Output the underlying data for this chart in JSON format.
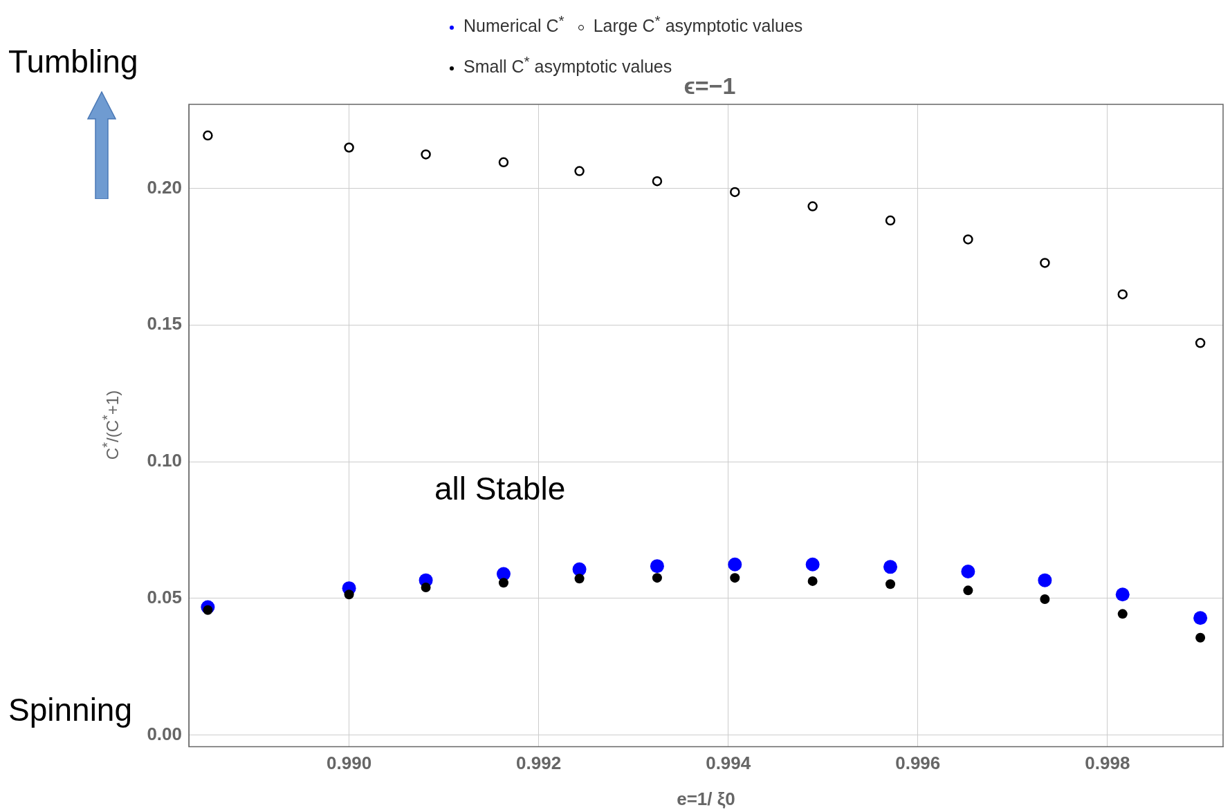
{
  "chart_data": {
    "type": "scatter",
    "title": "ϵ=−1",
    "xlabel": "e=1/ ξ0",
    "ylabel": "C$^{*}$/(C$^{*}$+1)",
    "x": [
      0.98851,
      0.99,
      0.99081,
      0.99163,
      0.99243,
      0.99325,
      0.99407,
      0.99489,
      0.99571,
      0.99653,
      0.99734,
      0.99816,
      0.99898
    ],
    "series": [
      {
        "name": "Numerical C$^{*}$",
        "color": "#0000ff",
        "marker": "circle",
        "values": [
          0.0468,
          0.0537,
          0.0566,
          0.0589,
          0.0606,
          0.0618,
          0.0624,
          0.0624,
          0.0615,
          0.0598,
          0.0566,
          0.0514,
          0.0428
        ]
      },
      {
        "name": "Large C$^{*}$ asymptotic values",
        "color": "#000000",
        "marker": "circle",
        "values": [
          0.2193,
          0.2149,
          0.2124,
          0.2095,
          0.2063,
          0.2026,
          0.1986,
          0.1934,
          0.1882,
          0.1813,
          0.1727,
          0.1612,
          0.1434
        ]
      },
      {
        "name": "Small C$^{*}$ asymptotic values",
        "color": "#000000",
        "marker": "circle",
        "values": [
          0.0457,
          0.0514,
          0.054,
          0.0557,
          0.0572,
          0.0575,
          0.0575,
          0.0563,
          0.0552,
          0.0529,
          0.0497,
          0.0443,
          0.0356
        ]
      }
    ],
    "xlim": [
      0.98831,
      0.99922
    ],
    "xticks": [
      {
        "value": 0.99,
        "label": "0.990"
      },
      0.992,
      0.994,
      0.996,
      0.998
    ],
    "ylim": [
      -0.0043,
      0.2307
    ],
    "yticks": [
      {
        "value": 0,
        "label": "0.00"
      },
      0.05,
      {
        "value": 0.1,
        "label": "0.10"
      },
      0.15,
      {
        "value": 0.2,
        "label": "0.20"
      }
    ],
    "grid": true,
    "legend": "top",
    "annotations": [
      "Tumbling",
      "Spinning",
      "all Stable"
    ]
  }
}
